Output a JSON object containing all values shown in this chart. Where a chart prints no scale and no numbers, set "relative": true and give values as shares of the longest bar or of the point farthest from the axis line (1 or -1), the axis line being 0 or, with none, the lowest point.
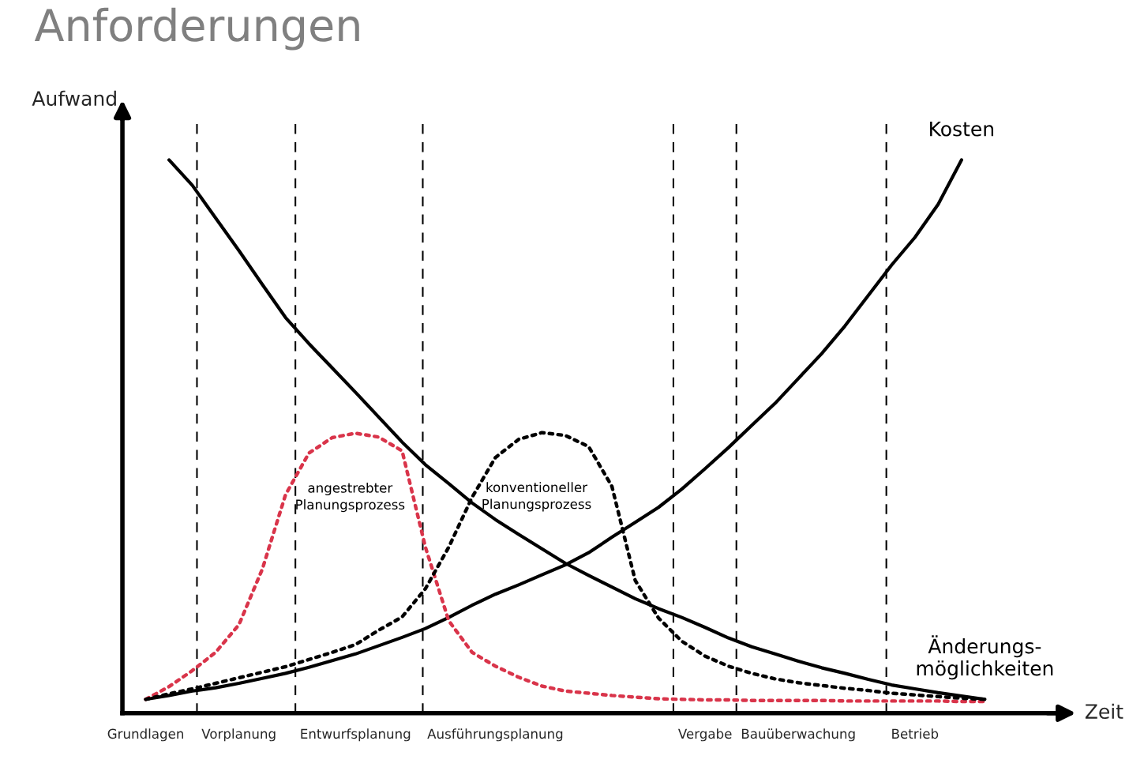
{
  "chart_data": {
    "type": "line",
    "title": "Anforderungen",
    "xlabel": "Zeit",
    "ylabel": "Aufwand",
    "relative": true,
    "categories": [
      "Grundlagen",
      null,
      null,
      null,
      "Vorplanung",
      null,
      null,
      null,
      null,
      "Entwurfsplanung",
      null,
      null,
      null,
      null,
      null,
      "Ausführungsplanung",
      null,
      null,
      null,
      null,
      null,
      null,
      null,
      null,
      "Vergabe",
      null,
      null,
      null,
      "Bauüberwachung",
      null,
      null,
      null,
      null,
      "Betrieb",
      null,
      null,
      null
    ],
    "series": [
      {
        "name": "Änderungs-\nmöglichkeiten",
        "color": "#000000",
        "line_style": "solid",
        "values": [
          null,
          1.0,
          0.954,
          0.895,
          0.836,
          0.775,
          0.715,
          0.668,
          0.624,
          0.58,
          0.535,
          0.49,
          0.449,
          0.415,
          0.38,
          0.35,
          0.323,
          0.297,
          0.271,
          0.249,
          0.228,
          0.207,
          0.189,
          0.173,
          0.155,
          0.136,
          0.12,
          0.107,
          0.094,
          0.082,
          0.072,
          0.061,
          0.051,
          0.044,
          0.037,
          0.031,
          0.025
        ]
      },
      {
        "name": "Kosten",
        "color": "#000000",
        "line_style": "solid",
        "values": [
          0.025,
          0.032,
          0.04,
          0.046,
          0.054,
          0.063,
          0.072,
          0.083,
          0.095,
          0.107,
          0.122,
          0.137,
          0.153,
          0.173,
          0.195,
          0.215,
          0.232,
          0.25,
          0.268,
          0.29,
          0.318,
          0.345,
          0.372,
          0.405,
          0.442,
          0.48,
          0.52,
          0.56,
          0.605,
          0.65,
          0.7,
          0.755,
          0.81,
          0.86,
          0.92,
          1.0,
          null
        ]
      },
      {
        "name": "angestrebter\nPlanungsprozess",
        "color": "#d9344a",
        "line_style": "dotted",
        "values": [
          0.025,
          0.048,
          0.077,
          0.11,
          0.16,
          0.26,
          0.395,
          0.47,
          0.498,
          0.506,
          0.499,
          0.474,
          0.3,
          0.167,
          0.11,
          0.085,
          0.065,
          0.049,
          0.04,
          0.036,
          0.032,
          0.029,
          0.026,
          0.025,
          0.024,
          0.024,
          0.023,
          0.023,
          0.023,
          0.023,
          0.022,
          0.022,
          0.022,
          0.022,
          0.022,
          0.021,
          0.021
        ]
      },
      {
        "name": "konventioneller\nPlanungsprozess",
        "color": "#000000",
        "line_style": "dotted",
        "values": [
          0.025,
          0.035,
          0.044,
          0.054,
          0.064,
          0.074,
          0.084,
          0.097,
          0.11,
          0.124,
          0.15,
          0.174,
          0.225,
          0.3,
          0.39,
          0.462,
          0.495,
          0.507,
          0.502,
          0.482,
          0.41,
          0.24,
          0.172,
          0.13,
          0.103,
          0.085,
          0.072,
          0.062,
          0.055,
          0.05,
          0.045,
          0.041,
          0.036,
          0.033,
          0.03,
          0.027,
          0.025
        ]
      }
    ],
    "grid": "x"
  }
}
